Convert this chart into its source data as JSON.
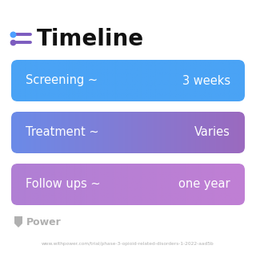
{
  "title": "Timeline",
  "title_icon_color": "#7c5cbf",
  "title_icon_blue": "#4d9fff",
  "title_fontsize": 20,
  "title_fontweight": "bold",
  "background_color": "#ffffff",
  "rows": [
    {
      "left_text": "Screening ~",
      "right_text": "3 weeks",
      "color_left": "#4aa3f5",
      "color_right": "#4aa3f5"
    },
    {
      "left_text": "Treatment ~",
      "right_text": "Varies",
      "color_left": "#6b8be8",
      "color_right": "#9b6abf"
    },
    {
      "left_text": "Follow ups ~",
      "right_text": "one year",
      "color_left": "#b07fd4",
      "color_right": "#c07fd4"
    }
  ],
  "row_text_fontsize": 10.5,
  "footer_text": "Power",
  "footer_url": "www.withpower.com/trial/phase-3-opioid-related-disorders-1-2022-aad5b",
  "footer_color": "#b0b0b0"
}
